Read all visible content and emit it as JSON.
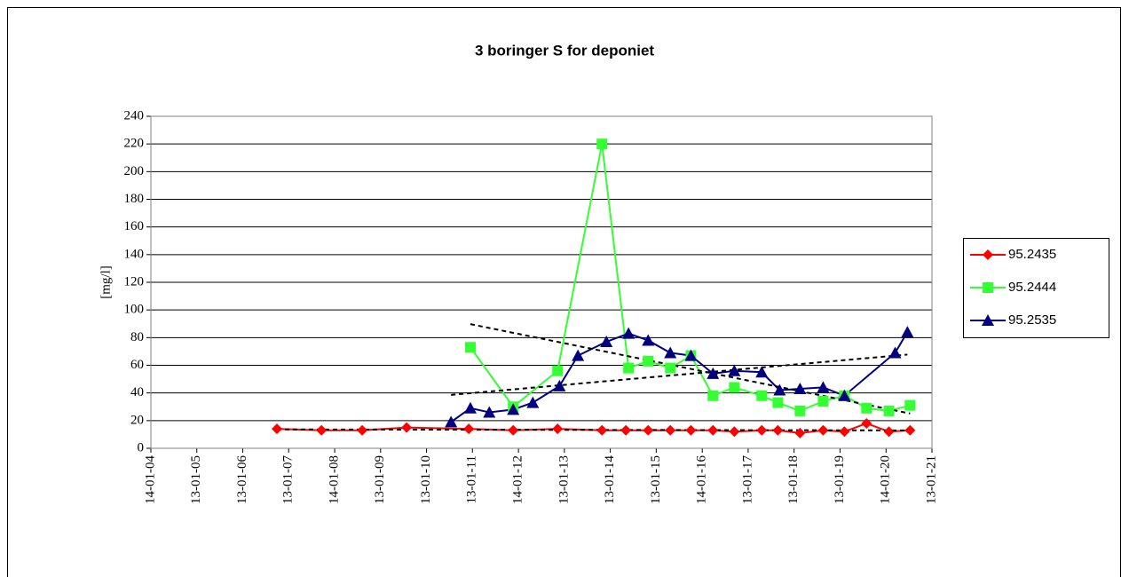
{
  "chart_data": {
    "type": "line",
    "title": "3 boringer S for deponiet",
    "y_label": "[mg/l]",
    "xlim": [
      "2004-01-14",
      "2021-01-13"
    ],
    "xticks": [
      {
        "value": "2004-01-14",
        "label": "14-01-04"
      },
      {
        "value": "2005-01-13",
        "label": "13-01-05"
      },
      {
        "value": "2006-01-13",
        "label": "13-01-06"
      },
      {
        "value": "2007-01-13",
        "label": "13-01-07"
      },
      {
        "value": "2008-01-14",
        "label": "14-01-08"
      },
      {
        "value": "2009-01-13",
        "label": "13-01-09"
      },
      {
        "value": "2010-01-13",
        "label": "13-01-10"
      },
      {
        "value": "2011-01-13",
        "label": "13-01-11"
      },
      {
        "value": "2012-01-14",
        "label": "14-01-12"
      },
      {
        "value": "2013-01-13",
        "label": "13-01-13"
      },
      {
        "value": "2014-01-13",
        "label": "13-01-14"
      },
      {
        "value": "2015-01-13",
        "label": "13-01-15"
      },
      {
        "value": "2016-01-14",
        "label": "14-01-16"
      },
      {
        "value": "2017-01-13",
        "label": "13-01-17"
      },
      {
        "value": "2018-01-13",
        "label": "13-01-18"
      },
      {
        "value": "2019-01-13",
        "label": "13-01-19"
      },
      {
        "value": "2020-01-14",
        "label": "14-01-20"
      },
      {
        "value": "2021-01-13",
        "label": "13-01-21"
      }
    ],
    "ylim": [
      0,
      240
    ],
    "yticks": [
      0,
      20,
      40,
      60,
      80,
      100,
      120,
      140,
      160,
      180,
      200,
      220,
      240
    ],
    "grid": true,
    "trendline": true,
    "legend": "right",
    "series": [
      {
        "name": "95.2435",
        "color": "#ff0000",
        "marker": "diamond",
        "x": [
          "2006-10-12",
          "2007-10-01",
          "2008-08-20",
          "2009-08-08",
          "2010-12-15",
          "2011-12-03",
          "2012-11-20",
          "2013-11-08",
          "2014-05-17",
          "2014-11-10",
          "2015-05-05",
          "2015-10-16",
          "2016-04-08",
          "2016-09-25",
          "2017-05-01",
          "2017-09-06",
          "2018-03-01",
          "2018-09-01",
          "2019-02-17",
          "2019-08-12",
          "2020-02-06",
          "2020-07-23"
        ],
        "values": [
          14,
          13,
          13,
          15,
          14,
          13,
          14,
          13,
          13,
          13,
          13,
          13,
          13,
          12,
          13,
          13,
          11,
          13,
          12,
          18,
          12,
          13
        ]
      },
      {
        "name": "95.2444",
        "color": "#33ff33",
        "marker": "square",
        "x": [
          "2010-12-28",
          "2011-12-03",
          "2012-11-20",
          "2013-11-08",
          "2014-06-07",
          "2014-11-10",
          "2015-05-05",
          "2015-10-16",
          "2016-04-08",
          "2016-09-25",
          "2017-05-01",
          "2017-09-06",
          "2018-03-01",
          "2018-09-01",
          "2019-02-17",
          "2019-08-12",
          "2020-02-06",
          "2020-07-23"
        ],
        "values": [
          73,
          30,
          56,
          220,
          58,
          63,
          58,
          67,
          38,
          44,
          38,
          33,
          27,
          34,
          38,
          29,
          27,
          31
        ]
      },
      {
        "name": "95.2535",
        "color": "#000080",
        "marker": "triangle",
        "x": [
          "2010-07-27",
          "2010-12-28",
          "2011-05-27",
          "2011-12-03",
          "2012-05-07",
          "2012-12-05",
          "2013-05-01",
          "2013-12-13",
          "2014-06-07",
          "2014-11-10",
          "2015-05-05",
          "2015-10-16",
          "2016-04-08",
          "2016-09-25",
          "2017-05-01",
          "2017-09-20",
          "2018-03-01",
          "2018-09-01",
          "2019-02-17",
          "2020-03-26",
          "2020-07-02"
        ],
        "values": [
          19,
          29,
          26,
          28,
          33,
          45,
          67,
          77,
          83,
          78,
          69,
          67,
          54,
          56,
          55,
          42,
          43,
          44,
          38,
          69,
          84
        ]
      }
    ]
  }
}
